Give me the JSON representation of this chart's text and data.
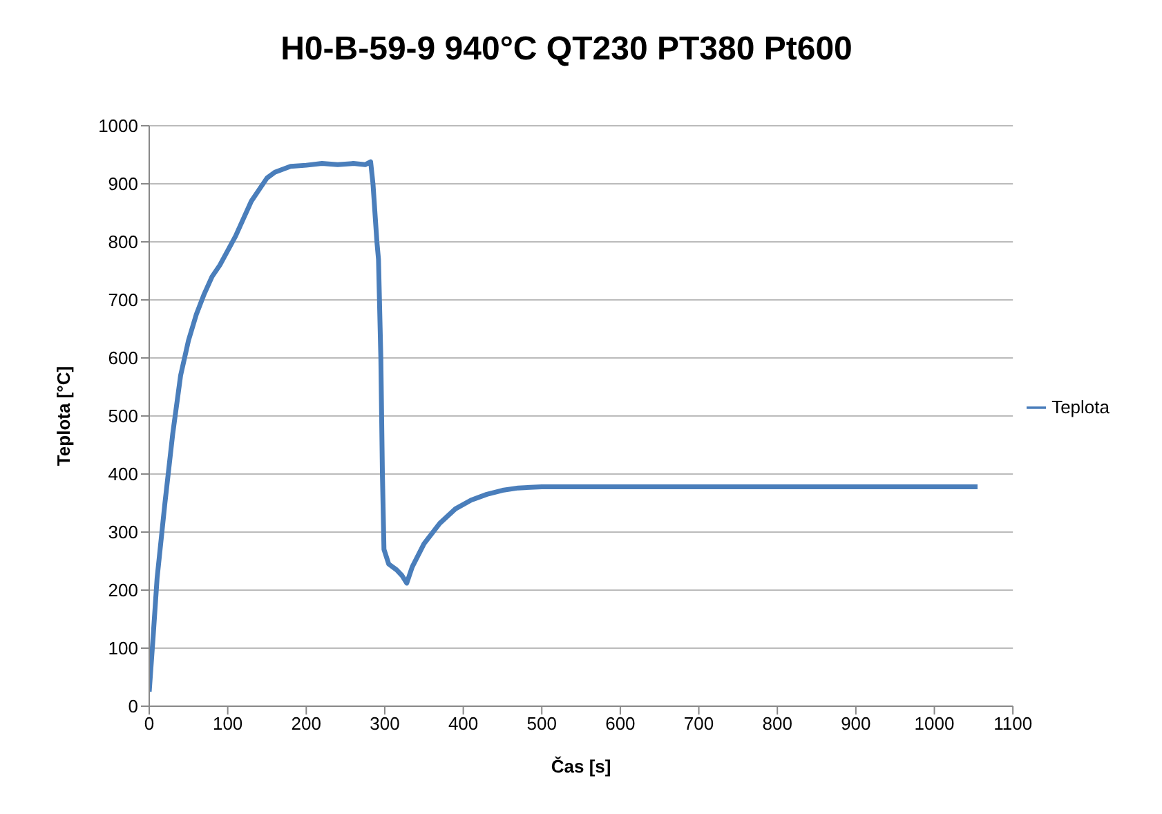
{
  "chart_data": {
    "type": "line",
    "title": "H0-B-59-9 940°C QT230 PT380 Pt600",
    "xlabel": "Čas [s]",
    "ylabel": "Teplota [°C]",
    "x": [
      0,
      5,
      10,
      20,
      30,
      40,
      50,
      60,
      70,
      80,
      90,
      100,
      110,
      120,
      130,
      140,
      150,
      160,
      170,
      180,
      200,
      220,
      240,
      260,
      275,
      282,
      285,
      290,
      292,
      295,
      297,
      299,
      305,
      315,
      322,
      328,
      335,
      350,
      370,
      390,
      410,
      430,
      450,
      470,
      500,
      600,
      700,
      800,
      900,
      1000,
      1055
    ],
    "series": [
      {
        "name": "Teplota",
        "color": "#4a7ebb",
        "values": [
          25,
          120,
          220,
          350,
          470,
          570,
          630,
          675,
          710,
          740,
          760,
          785,
          810,
          840,
          870,
          890,
          910,
          920,
          925,
          930,
          932,
          935,
          933,
          935,
          933,
          938,
          900,
          800,
          770,
          600,
          400,
          270,
          245,
          235,
          225,
          212,
          240,
          280,
          315,
          340,
          355,
          365,
          372,
          376,
          378,
          378,
          378,
          378,
          378,
          378,
          378
        ]
      }
    ],
    "xlim": [
      0,
      1100
    ],
    "xticks": [
      0,
      100,
      200,
      300,
      400,
      500,
      600,
      700,
      800,
      900,
      1000,
      1100
    ],
    "ylim": [
      0,
      1000
    ],
    "yticks": [
      0,
      100,
      200,
      300,
      400,
      500,
      600,
      700,
      800,
      900,
      1000
    ],
    "grid": "y",
    "legend": "right",
    "marker": "none",
    "line_style": "solid"
  }
}
